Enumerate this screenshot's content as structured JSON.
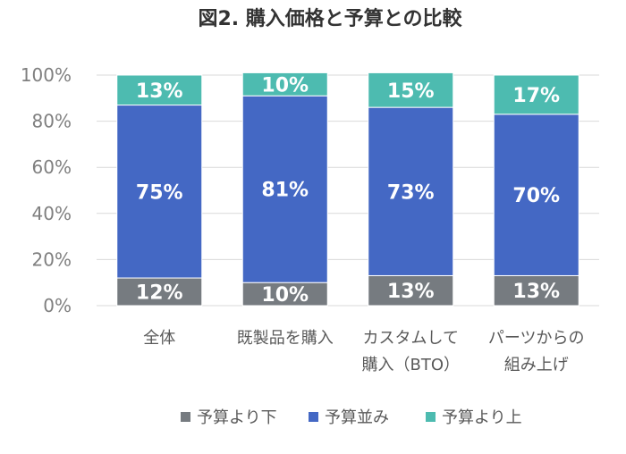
{
  "chart_data": {
    "type": "bar",
    "stacked": true,
    "title": "図2. 購入価格と予算との比較",
    "categories": [
      [
        "全体"
      ],
      [
        "既製品を購入"
      ],
      [
        "カスタムして",
        "購入（BTO）"
      ],
      [
        "パーツからの",
        "組み上げ"
      ]
    ],
    "series": [
      {
        "name": "予算より下",
        "color": "#767b80",
        "values": [
          12,
          10,
          13,
          13
        ],
        "labels": [
          "12%",
          "10%",
          "13%",
          "13%"
        ]
      },
      {
        "name": "予算並み",
        "color": "#4468c4",
        "values": [
          75,
          81,
          73,
          70
        ],
        "labels": [
          "75%",
          "81%",
          "73%",
          "70%"
        ]
      },
      {
        "name": "予算より上",
        "color": "#4dbbb0",
        "values": [
          13,
          10,
          15,
          17
        ],
        "labels": [
          "13%",
          "10%",
          "15%",
          "17%"
        ]
      }
    ],
    "yticks": [
      "0%",
      "20%",
      "40%",
      "60%",
      "80%",
      "100%"
    ],
    "ylim": [
      0,
      100
    ],
    "grid": true,
    "legend": "bottom"
  }
}
